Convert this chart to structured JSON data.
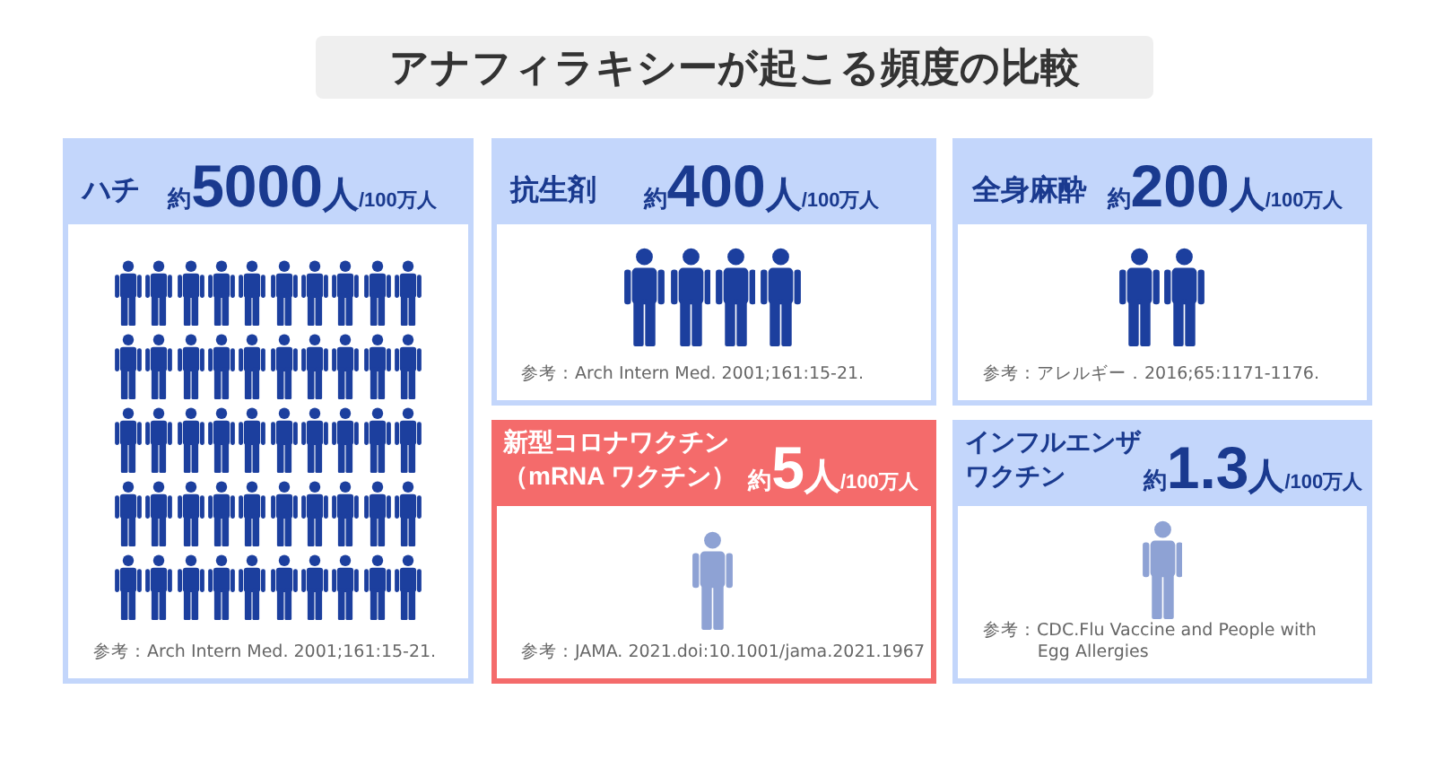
{
  "chart_data": {
    "type": "other",
    "title": "アナフィラキシーが起こる頻度の比較",
    "categories": [
      "ハチ",
      "抗生剤",
      "全身麻酔",
      "新型コロナワクチン（mRNA ワクチン）",
      "インフルエンザワクチン"
    ],
    "values": [
      5000,
      400,
      200,
      5,
      1.3
    ],
    "value_labels": [
      "約5000人/100万人",
      "約400人/100万人",
      "約200人/100万人",
      "約5人/100万人",
      "約1.3人/100万人"
    ],
    "colors": [
      "#c3d6fb",
      "#c3d6fb",
      "#c3d6fb",
      "#f46b6b",
      "#c3d6fb"
    ],
    "annotations": [
      "参考：Arch Intern Med. 2001;161:15-21.",
      "参考：Arch Intern Med. 2001;161:15-21.",
      "参考：アレルギー．2016;65:1171-1176.",
      "参考：JAMA. 2021.doi:10.1001/jama.2021.1967",
      "参考：CDC.Flu Vaccine and People with Egg Allergies"
    ]
  }
}
